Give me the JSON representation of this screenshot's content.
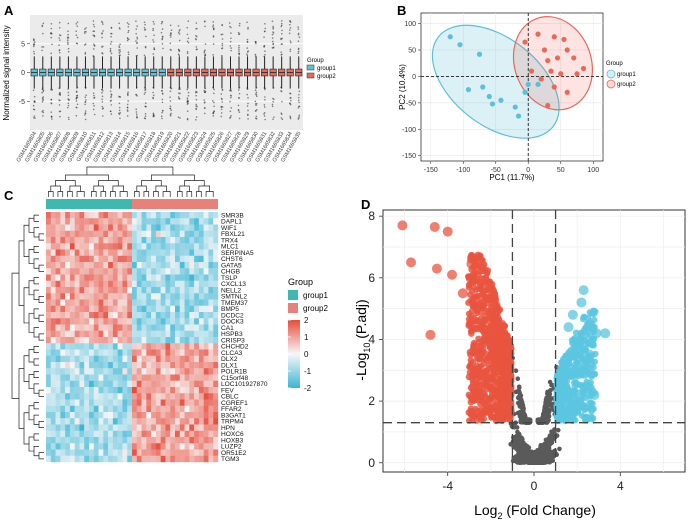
{
  "panels": {
    "a": "A",
    "b": "B",
    "c": "C",
    "d": "D"
  },
  "colors": {
    "group1": "#5bc0d8",
    "group2": "#e8695a",
    "heat_low": "#3bb6d6",
    "heat_mid": "#f5f5f5",
    "heat_high": "#e74c3c",
    "volcano_up": "#5bc6e0",
    "volcano_down": "#e9553f",
    "volcano_ns": "#5a5a5a"
  },
  "chart_data": [
    {
      "id": "boxplot",
      "type": "box",
      "ylabel": "Normalized signal intensity",
      "ylim": [
        -10,
        10
      ],
      "yticks": [
        -5,
        0,
        5
      ],
      "legend": {
        "title": "Group",
        "entries": [
          "group1",
          "group2"
        ],
        "position": "right"
      },
      "samples": [
        "GSM1665804",
        "GSM1665805",
        "GSM1665806",
        "GSM1665807",
        "GSM1665808",
        "GSM1665809",
        "GSM1665810",
        "GSM1665811",
        "GSM1665812",
        "GSM1665813",
        "GSM1665814",
        "GSM1665815",
        "GSM1665816",
        "GSM1665817",
        "GSM1665818",
        "GSM1665819",
        "GSM1665820",
        "GSM1665821",
        "GSM1665822",
        "GSM1665823",
        "GSM1665824",
        "GSM1665825",
        "GSM1665826",
        "GSM1665827",
        "GSM1665828",
        "GSM1665829",
        "GSM1665830",
        "GSM1665831",
        "GSM1665832",
        "GSM1665833",
        "GSM1665834",
        "GSM1665835"
      ],
      "groups": [
        "group1",
        "group1",
        "group1",
        "group1",
        "group1",
        "group1",
        "group1",
        "group1",
        "group1",
        "group1",
        "group1",
        "group1",
        "group1",
        "group1",
        "group1",
        "group1",
        "group2",
        "group2",
        "group2",
        "group2",
        "group2",
        "group2",
        "group2",
        "group2",
        "group2",
        "group2",
        "group2",
        "group2",
        "group2",
        "group2",
        "group2",
        "group2"
      ],
      "median": 0,
      "q1": -0.6,
      "q3": 0.6,
      "whisker": [
        -2.8,
        2.8
      ]
    },
    {
      "id": "pca",
      "type": "scatter",
      "xlabel": "PC1 (11.7%)",
      "ylabel": "PC2 (10.4%)",
      "xlim": [
        -165,
        115
      ],
      "ylim": [
        -160,
        120
      ],
      "xticks": [
        -150,
        -100,
        -50,
        0,
        50,
        100
      ],
      "yticks": [
        -150,
        -100,
        -50,
        0,
        50,
        100
      ],
      "legend": {
        "title": "Group",
        "entries": [
          "group1",
          "group2"
        ],
        "position": "right"
      },
      "series": [
        {
          "name": "group1",
          "points": [
            [
              -120,
              75
            ],
            [
              -105,
              60
            ],
            [
              -75,
              42
            ],
            [
              -92,
              -25
            ],
            [
              -70,
              -20
            ],
            [
              -60,
              -38
            ],
            [
              -55,
              -52
            ],
            [
              -42,
              -45
            ],
            [
              -20,
              -58
            ],
            [
              -15,
              -75
            ],
            [
              -5,
              -30
            ],
            [
              0,
              -15
            ],
            [
              15,
              -15
            ]
          ]
        },
        {
          "name": "group2",
          "points": [
            [
              -5,
              65
            ],
            [
              15,
              80
            ],
            [
              25,
              50
            ],
            [
              40,
              75
            ],
            [
              55,
              70
            ],
            [
              30,
              30
            ],
            [
              45,
              35
            ],
            [
              60,
              50
            ],
            [
              70,
              35
            ],
            [
              35,
              10
            ],
            [
              50,
              5
            ],
            [
              75,
              5
            ],
            [
              85,
              15
            ],
            [
              20,
              -5
            ],
            [
              40,
              -20
            ],
            [
              60,
              -30
            ],
            [
              30,
              -55
            ],
            [
              5,
              10
            ]
          ]
        }
      ]
    },
    {
      "id": "heatmap",
      "type": "heatmap",
      "genes": [
        "SMR3B",
        "DAPL1",
        "WIF1",
        "FBXL21",
        "TRX4",
        "MLC1",
        "SERPINA5",
        "CHST6",
        "GATA5",
        "CHGB",
        "TSLP",
        "CXCL13",
        "NELL2",
        "SMTNL2",
        "TMEM37",
        "BMP5",
        "DCDC2",
        "DOCK3",
        "CA1",
        "HSPB3",
        "CRISP3",
        "CHCHD2",
        "CLCA3",
        "DLX2",
        "DLX1",
        "POLR1B",
        "C15orf48",
        "LOC101927870",
        "FEV",
        "CBLC",
        "CGREF1",
        "FFAR2",
        "B3GAT1",
        "TRPM4",
        "HPN",
        "HOXC6",
        "HOXB3",
        "LUZP2",
        "OR51E2",
        "TGM3"
      ],
      "n_group1": 18,
      "n_group2": 18,
      "legend": {
        "title": "Group",
        "entries": [
          "group1",
          "group2"
        ],
        "position": "right"
      },
      "colorbar": {
        "ticks": [
          2,
          1,
          0,
          -1,
          -2
        ],
        "range": [
          -2,
          2
        ]
      }
    },
    {
      "id": "volcano",
      "type": "scatter",
      "xlabel_base": "Log",
      "xlabel_sub": "2",
      "xlabel_rest": " (Fold Change)",
      "ylabel_prefix": "-Log",
      "ylabel_sub": "10",
      "ylabel_rest": " (P.adj)",
      "xlim": [
        -7,
        7
      ],
      "ylim": [
        -0.3,
        8.2
      ],
      "xticks": [
        -4,
        0,
        4
      ],
      "yticks": [
        0,
        2,
        4,
        6,
        8
      ],
      "fc_cutoff": [
        -1,
        1
      ],
      "p_cutoff": 1.3,
      "down_points": [
        [
          -6.1,
          7.7
        ],
        [
          -4.6,
          7.65
        ],
        [
          -4.0,
          7.5
        ],
        [
          -5.7,
          6.5
        ],
        [
          -4.5,
          6.3
        ],
        [
          -2.9,
          6.45
        ],
        [
          -2.7,
          6.35
        ],
        [
          -3.8,
          6.1
        ],
        [
          -4.8,
          4.15
        ],
        [
          -2.5,
          5.9
        ],
        [
          -3.3,
          5.5
        ],
        [
          -2.2,
          5.7
        ]
      ],
      "up_points": [
        [
          2.3,
          5.6
        ],
        [
          2.2,
          5.2
        ],
        [
          2.9,
          4.2
        ],
        [
          3.3,
          4.2
        ],
        [
          2.4,
          3.9
        ],
        [
          2.6,
          3.5
        ],
        [
          2.1,
          3.0
        ],
        [
          2.5,
          2.5
        ],
        [
          2.8,
          2.2
        ],
        [
          1.8,
          4.8
        ],
        [
          1.6,
          4.4
        ],
        [
          2.0,
          3.7
        ]
      ]
    }
  ]
}
